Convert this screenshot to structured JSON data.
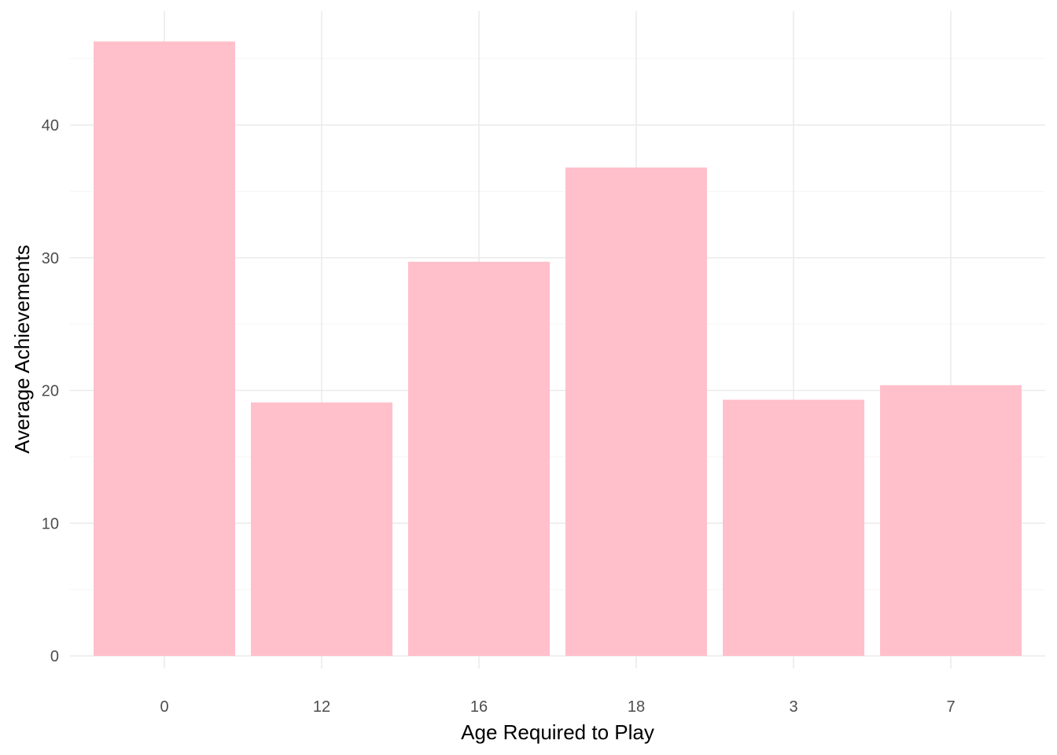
{
  "chart_data": {
    "type": "bar",
    "categories": [
      "0",
      "12",
      "16",
      "18",
      "3",
      "7"
    ],
    "values": [
      46.3,
      19.1,
      29.7,
      36.8,
      19.3,
      20.4
    ],
    "xlabel": "Age Required to Play",
    "ylabel": "Average Achievements",
    "ylim": [
      0,
      48.5
    ],
    "yticks": [
      0,
      10,
      20,
      30,
      40
    ],
    "grid": true,
    "legend": "none",
    "bar_color": "#ffc0cb"
  }
}
